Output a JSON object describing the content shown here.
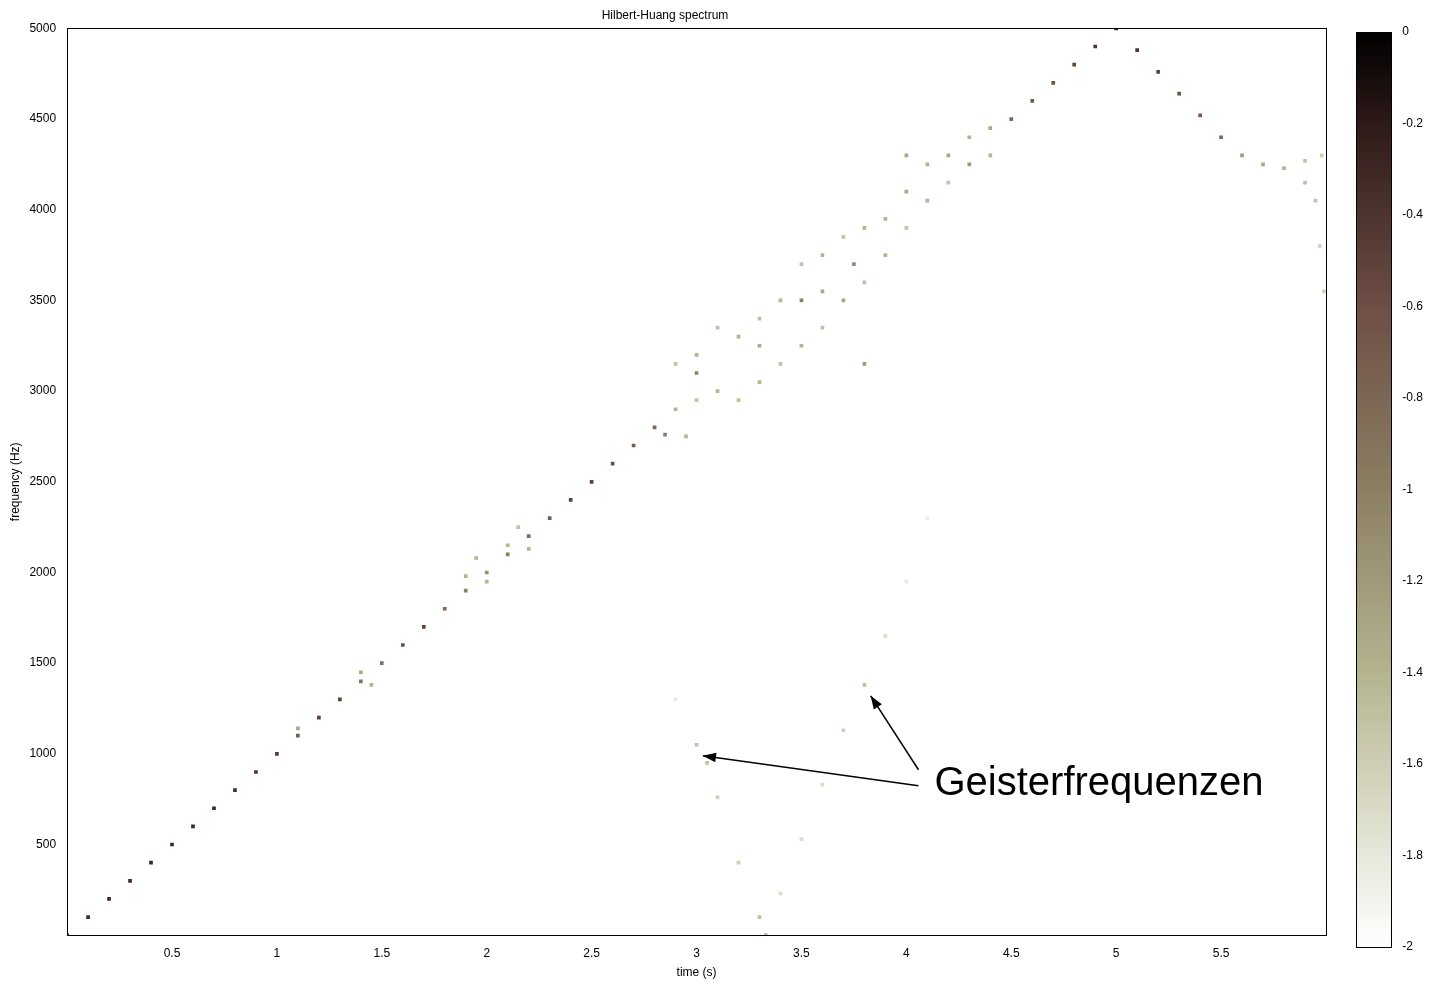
{
  "chart_data": {
    "type": "scatter",
    "title": "Hilbert-Huang spectrum",
    "x_label": "time (s)",
    "y_label": "frequency (Hz)",
    "marker": "square",
    "grid": false,
    "xlim": [
      0,
      6
    ],
    "xticks": [
      0.5,
      1,
      1.5,
      2,
      2.5,
      3,
      3.5,
      4,
      4.5,
      5,
      5.5
    ],
    "ylim": [
      0,
      5000
    ],
    "yticks": [
      500,
      1000,
      1500,
      2000,
      2500,
      3000,
      3500,
      4000,
      4500,
      5000
    ],
    "x": [
      0,
      0.1,
      0.2,
      0.3,
      0.4,
      0.5,
      0.6,
      0.7,
      0.8,
      0.9,
      1,
      1.1,
      1.2,
      1.3,
      1.4,
      1.5,
      1.6,
      1.7,
      1.8,
      1.9,
      2,
      2.1,
      2.2,
      2.3,
      2.4,
      2.5,
      2.6,
      2.7,
      2.8,
      4.5,
      4.6,
      4.7,
      4.8,
      4.9,
      5,
      5.1,
      5.2,
      5.3,
      5.4,
      5.5,
      5.6,
      5.7,
      5.8,
      5.9,
      5.98,
      1.1,
      1.4,
      1.45,
      1.9,
      1.95,
      2,
      2.1,
      2.15,
      2.2,
      2.85,
      2.9,
      2.9,
      2.95,
      3,
      3,
      3,
      3.1,
      3.1,
      3.2,
      3.2,
      3.3,
      3.3,
      3.4,
      3.4,
      3.5,
      3.5,
      3.5,
      3.6,
      3.6,
      3.7,
      3.7,
      3.75,
      3.8,
      3.8,
      3.8,
      3.9,
      3.9,
      4,
      4,
      4.1,
      4.1,
      4.2,
      4.2,
      4.3,
      4.3,
      4.4,
      4.4,
      3.3,
      3.6,
      4,
      5.9,
      5.95,
      5.97,
      5.99,
      2.9,
      3,
      3.05,
      3.1,
      3.2,
      3.3,
      3.33,
      3.4,
      3.5,
      3.6,
      3.7,
      3.8,
      3.9,
      4,
      4.1
    ],
    "values": [
      0,
      100,
      200,
      300,
      400,
      500,
      600,
      700,
      800,
      900,
      1000,
      1100,
      1200,
      1300,
      1400,
      1500,
      1600,
      1700,
      1800,
      1900,
      2000,
      2100,
      2200,
      2300,
      2400,
      2500,
      2600,
      2700,
      2800,
      4500,
      4600,
      4700,
      4800,
      4900,
      5000,
      4880,
      4760,
      4640,
      4520,
      4400,
      4300,
      4250,
      4230,
      4270,
      4300,
      1140,
      1450,
      1380,
      1980,
      2080,
      1950,
      2150,
      2250,
      2130,
      2760,
      2900,
      3150,
      2750,
      3200,
      2950,
      3100,
      3350,
      3000,
      3300,
      2950,
      3400,
      3050,
      3500,
      3150,
      3700,
      3250,
      3500,
      3750,
      3350,
      3850,
      3500,
      3700,
      3900,
      3600,
      3150,
      3950,
      3750,
      4300,
      3900,
      4250,
      4050,
      4300,
      4150,
      4250,
      4400,
      4450,
      4300,
      3250,
      3550,
      4100,
      4150,
      4050,
      3800,
      3550,
      1300,
      1050,
      950,
      760,
      400,
      100,
      0,
      230,
      530,
      830,
      1130,
      1380,
      1650,
      1950,
      2300
    ],
    "amplitude": [
      -0.3,
      -0.3,
      -0.3,
      -0.3,
      -0.3,
      -0.3,
      -0.3,
      -0.3,
      -0.35,
      -0.4,
      -0.45,
      -0.7,
      -0.5,
      -0.5,
      -0.9,
      -0.9,
      -0.6,
      -0.5,
      -0.8,
      -1,
      -1.1,
      -1,
      -0.8,
      -0.7,
      -0.5,
      -0.5,
      -0.6,
      -0.7,
      -0.8,
      -0.8,
      -0.7,
      -0.6,
      -0.5,
      -0.4,
      -0.2,
      -0.4,
      -0.5,
      -0.6,
      -0.7,
      -0.8,
      -1.2,
      -1.3,
      -1.4,
      -1.5,
      -1.6,
      -1.3,
      -1.3,
      -1.4,
      -1.4,
      -1.4,
      -1.4,
      -1.4,
      -1.5,
      -1.4,
      -1,
      -1.4,
      -1.5,
      -1.4,
      -1.4,
      -1.5,
      -1,
      -1.5,
      -1.4,
      -1.4,
      -1.5,
      -1.5,
      -1.4,
      -1.4,
      -1.5,
      -1.5,
      -1.4,
      -1,
      -1.4,
      -1.5,
      -1.5,
      -1.3,
      -1.1,
      -1.4,
      -1.5,
      -1.2,
      -1.4,
      -1.4,
      -1.3,
      -1.5,
      -1.4,
      -1.4,
      -1.3,
      -1.5,
      -1.2,
      -1.4,
      -1.3,
      -1.4,
      -1.3,
      -1.3,
      -1.3,
      -1.5,
      -1.5,
      -1.6,
      -1.6,
      -1.8,
      -1.5,
      -1.5,
      -1.6,
      -1.6,
      -1.5,
      -1.4,
      -1.7,
      -1.7,
      -1.7,
      -1.6,
      -1.5,
      -1.7,
      -1.8,
      -1.85
    ],
    "colorbar": {
      "range": [
        -2,
        0
      ],
      "ticks": [
        0,
        -0.2,
        -0.4,
        -0.6,
        -0.8,
        -1,
        -1.2,
        -1.4,
        -1.6,
        -1.8,
        -2
      ]
    },
    "annotation": {
      "text": "Geisterfrequenzen",
      "arrows_to": [
        [
          3.03,
          990
        ],
        [
          3.83,
          1320
        ]
      ]
    }
  }
}
